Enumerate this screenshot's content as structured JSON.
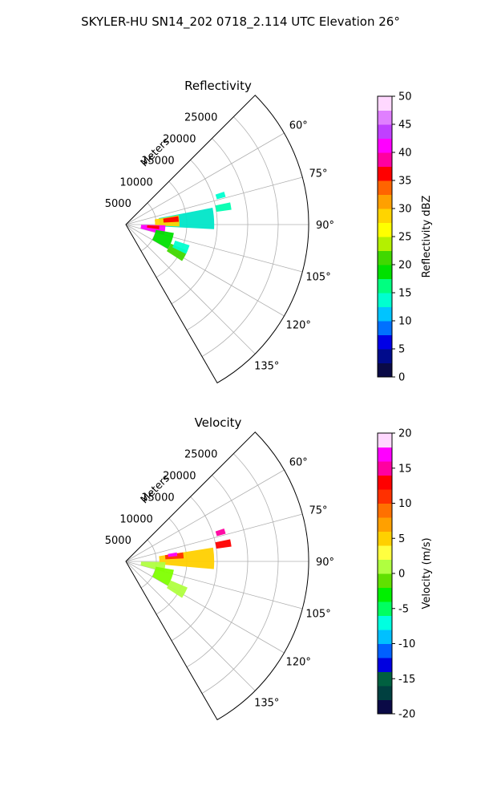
{
  "figure_title": "SKYLER-HU  SN14_202  0718_2.114 UTC Elevation 26°",
  "colors": {
    "grid": "#b0b0b0",
    "frame": "#000000"
  },
  "chart_data": [
    {
      "type": "polar",
      "title": "Reflectivity",
      "radial_label": "Meters",
      "r_ticks": [
        "5000",
        "10000",
        "15000",
        "20000",
        "25000"
      ],
      "r_max": 30000,
      "theta_range_deg": [
        45,
        150
      ],
      "theta_ticks": [
        "60°",
        "75°",
        "90°",
        "105°",
        "120°",
        "135°"
      ],
      "colorbar": {
        "label": "Reflectivity dBZ",
        "min": 0,
        "max": 50,
        "ticks": [
          "0",
          "5",
          "10",
          "15",
          "20",
          "25",
          "30",
          "35",
          "40",
          "45",
          "50"
        ],
        "colors": [
          "#0a0a46",
          "#000b8c",
          "#0000e6",
          "#0070ff",
          "#00c4ff",
          "#00ffd0",
          "#00ff80",
          "#00e000",
          "#40d800",
          "#b4f000",
          "#ffff00",
          "#ffd400",
          "#ffa000",
          "#ff6400",
          "#ff0000",
          "#ff00a0",
          "#ff00ff",
          "#c040ff",
          "#e080ff",
          "#ffd8ff"
        ]
      },
      "echoes": [
        {
          "az": 86,
          "r": 5500,
          "dr": 9000,
          "da": 14,
          "c": "#00e6c8"
        },
        {
          "az": 86,
          "r": 4800,
          "dr": 4000,
          "da": 12,
          "c": "#ffd400"
        },
        {
          "az": 84,
          "r": 6200,
          "dr": 2500,
          "da": 6,
          "c": "#ff0000"
        },
        {
          "az": 98,
          "r": 2500,
          "dr": 4000,
          "da": 14,
          "c": "#ff00ff"
        },
        {
          "az": 95,
          "r": 3500,
          "dr": 2000,
          "da": 6,
          "c": "#ff0000"
        },
        {
          "az": 110,
          "r": 5000,
          "dr": 3000,
          "da": 20,
          "c": "#00e000"
        },
        {
          "az": 118,
          "r": 8000,
          "dr": 3000,
          "da": 10,
          "c": "#40d800"
        },
        {
          "az": 112,
          "r": 8500,
          "dr": 2500,
          "da": 8,
          "c": "#00ffd0"
        },
        {
          "az": 80,
          "r": 15000,
          "dr": 2500,
          "da": 4,
          "c": "#00ffb0"
        },
        {
          "az": 73,
          "r": 15500,
          "dr": 1500,
          "da": 3,
          "c": "#00ffd0"
        }
      ]
    },
    {
      "type": "polar",
      "title": "Velocity",
      "radial_label": "Meters",
      "r_ticks": [
        "5000",
        "10000",
        "15000",
        "20000",
        "25000"
      ],
      "r_max": 30000,
      "theta_range_deg": [
        45,
        150
      ],
      "theta_ticks": [
        "60°",
        "75°",
        "90°",
        "105°",
        "120°",
        "135°"
      ],
      "colorbar": {
        "label": "Velocity (m/s)",
        "min": -20,
        "max": 20,
        "ticks": [
          "-20",
          "-15",
          "-10",
          "-5",
          "0",
          "5",
          "10",
          "15",
          "20"
        ],
        "colors": [
          "#0a0a46",
          "#004040",
          "#006040",
          "#0000e0",
          "#0060ff",
          "#00c0ff",
          "#00ffe0",
          "#00ff60",
          "#00f000",
          "#60e000",
          "#b0ff40",
          "#ffff40",
          "#ffd000",
          "#ffa000",
          "#ff7000",
          "#ff3000",
          "#ff0000",
          "#ff00a0",
          "#ff00ff",
          "#ffd8ff"
        ]
      },
      "echoes": [
        {
          "az": 88,
          "r": 5500,
          "dr": 9000,
          "da": 14,
          "c": "#ffd000"
        },
        {
          "az": 84,
          "r": 6500,
          "dr": 3000,
          "da": 6,
          "c": "#ff3000"
        },
        {
          "az": 82,
          "r": 7000,
          "dr": 1500,
          "da": 4,
          "c": "#ff00ff"
        },
        {
          "az": 98,
          "r": 2500,
          "dr": 4000,
          "da": 14,
          "c": "#b0ff40"
        },
        {
          "az": 110,
          "r": 5000,
          "dr": 3000,
          "da": 20,
          "c": "#80ff00"
        },
        {
          "az": 118,
          "r": 8000,
          "dr": 3000,
          "da": 10,
          "c": "#b0ff40"
        },
        {
          "az": 80,
          "r": 15000,
          "dr": 2500,
          "da": 4,
          "c": "#ff0000"
        },
        {
          "az": 73,
          "r": 15500,
          "dr": 1500,
          "da": 3,
          "c": "#ff00a0"
        }
      ]
    }
  ]
}
